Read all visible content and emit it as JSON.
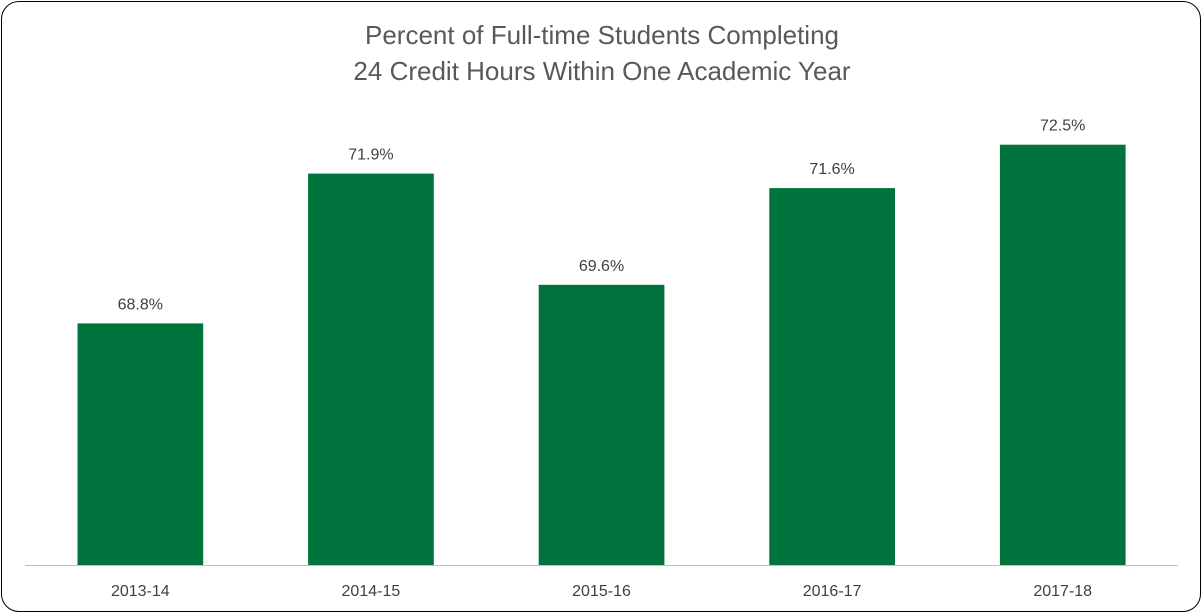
{
  "chart_data": {
    "type": "bar",
    "title_lines": [
      "Percent of Full-time Students Completing",
      "24 Credit Hours Within One Academic Year"
    ],
    "categories": [
      "2013-14",
      "2014-15",
      "2015-16",
      "2016-17",
      "2017-18"
    ],
    "values": [
      68.8,
      71.9,
      69.6,
      71.6,
      72.5
    ],
    "data_labels": [
      "68.8%",
      "71.9%",
      "69.6%",
      "71.6%",
      "72.5%"
    ],
    "ylim": [
      63.8,
      73.3
    ],
    "grid": false,
    "legend": "none",
    "bar_color": "#00743C",
    "axis_color": "#BFBFBF"
  }
}
